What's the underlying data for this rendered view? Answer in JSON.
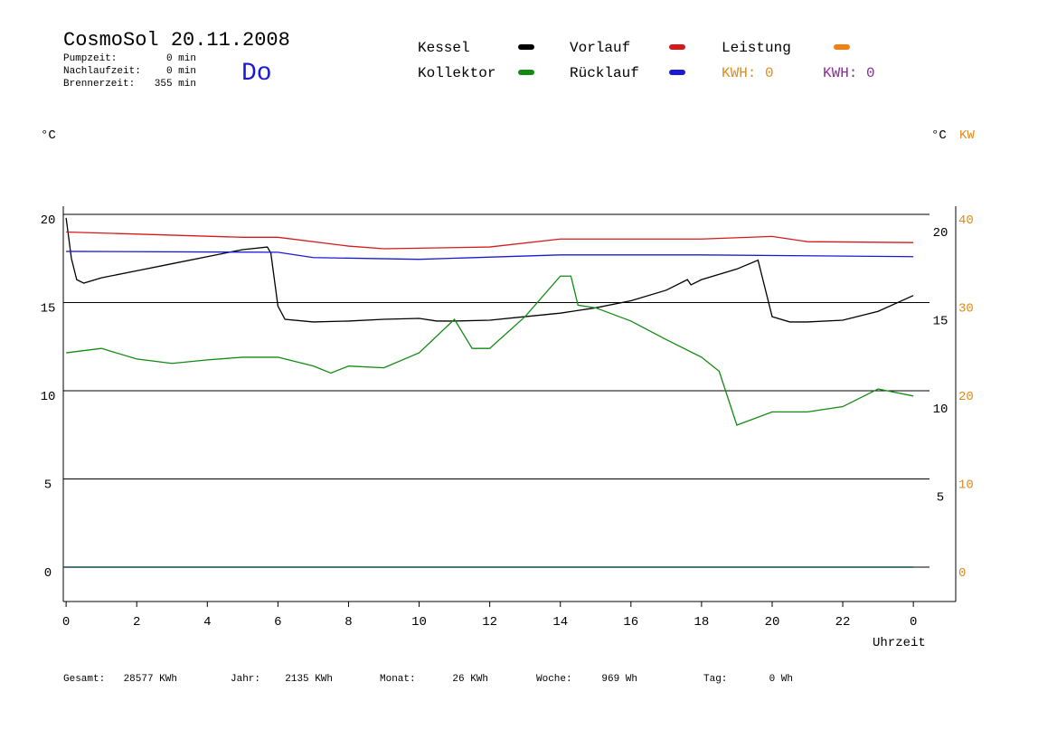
{
  "chart_data": {
    "type": "line",
    "title": "CosmoSol 20.11.2008",
    "weekday": "Do",
    "info": [
      [
        "Pumpzeit:",
        "0 min"
      ],
      [
        "Nachlaufzeit:",
        "0 min"
      ],
      [
        "Brennerzeit:",
        "355 min"
      ]
    ],
    "y_unit_left": "°C",
    "y_unit_right": "°C",
    "y2_unit": "KW",
    "xlabel": "Uhrzeit",
    "xlim": [
      -0.08,
      25.2
    ],
    "xticks": [
      0,
      2,
      4,
      6,
      8,
      10,
      12,
      14,
      16,
      18,
      20,
      22,
      {
        "value": 24,
        "label": "0"
      }
    ],
    "ylim": [
      -1.95,
      20.46
    ],
    "yticks": [
      0,
      5,
      10,
      15,
      20
    ],
    "yticks_right": [
      5,
      10,
      15,
      20
    ],
    "y2lim": [
      -3.9,
      40.92
    ],
    "y2ticks": [
      0,
      10,
      20,
      30,
      40
    ],
    "y2color": "#e08a1e",
    "series": [
      {
        "name": "Kessel",
        "color": "#000000",
        "x": [
          0,
          0.15,
          0.3,
          0.5,
          1,
          2,
          3,
          4,
          5,
          5.7,
          5.8,
          6,
          6.2,
          7,
          8,
          9,
          10,
          10.5,
          11,
          12,
          13,
          14,
          15,
          16,
          17,
          17.6,
          17.7,
          18,
          19,
          19.6,
          19.8,
          20,
          20.5,
          21,
          22,
          23,
          24
        ],
        "values": [
          19.8,
          17.5,
          16.3,
          16.1,
          16.4,
          16.8,
          17.2,
          17.6,
          18.0,
          18.15,
          17.8,
          14.8,
          14.05,
          13.9,
          13.95,
          14.05,
          14.1,
          13.95,
          13.95,
          14.0,
          14.2,
          14.4,
          14.7,
          15.1,
          15.7,
          16.3,
          16.0,
          16.3,
          16.9,
          17.4,
          15.8,
          14.2,
          13.9,
          13.9,
          14.0,
          14.5,
          15.4
        ]
      },
      {
        "name": "Kollektor",
        "color": "#138a13",
        "x": [
          0,
          1,
          2,
          3,
          4,
          5,
          6,
          7,
          7.5,
          8,
          9,
          10,
          11,
          11.5,
          12,
          13,
          14,
          14.3,
          14.5,
          15,
          16,
          17,
          18,
          18.5,
          19,
          20,
          21,
          22,
          23,
          24
        ],
        "values": [
          12.15,
          12.4,
          11.8,
          11.55,
          11.75,
          11.9,
          11.9,
          11.4,
          11.0,
          11.4,
          11.3,
          12.15,
          14.05,
          12.4,
          12.4,
          14.2,
          16.5,
          16.5,
          14.85,
          14.7,
          13.95,
          12.9,
          11.9,
          11.1,
          8.05,
          8.8,
          8.8,
          9.1,
          10.1,
          9.7
        ]
      },
      {
        "name": "Vorlauf",
        "color": "#d41a1a",
        "x": [
          0,
          5,
          6,
          8,
          9,
          12,
          14,
          18,
          20,
          21,
          24
        ],
        "values": [
          19.0,
          18.7,
          18.7,
          18.2,
          18.05,
          18.15,
          18.6,
          18.6,
          18.75,
          18.45,
          18.4
        ]
      },
      {
        "name": "Rücklauf",
        "color": "#1a1ad4",
        "x": [
          0,
          6,
          7,
          10,
          14,
          18,
          24
        ],
        "values": [
          17.9,
          17.85,
          17.55,
          17.45,
          17.7,
          17.7,
          17.6
        ]
      }
    ],
    "legend_extra": {
      "name": "Leistung",
      "color": "#f08010"
    },
    "annotations": [
      {
        "text": "KWH: 0",
        "color": "#e08a1e"
      },
      {
        "text": "KWH: 0",
        "color": "#8a2a9a"
      }
    ],
    "footer": [
      [
        "Gesamt:",
        "28577 KWh"
      ],
      [
        "Jahr:",
        "2135 KWh"
      ],
      [
        "Monat:",
        "26 KWh"
      ],
      [
        "Woche:",
        "969 Wh"
      ],
      [
        "Tag:",
        "0 Wh"
      ]
    ]
  }
}
